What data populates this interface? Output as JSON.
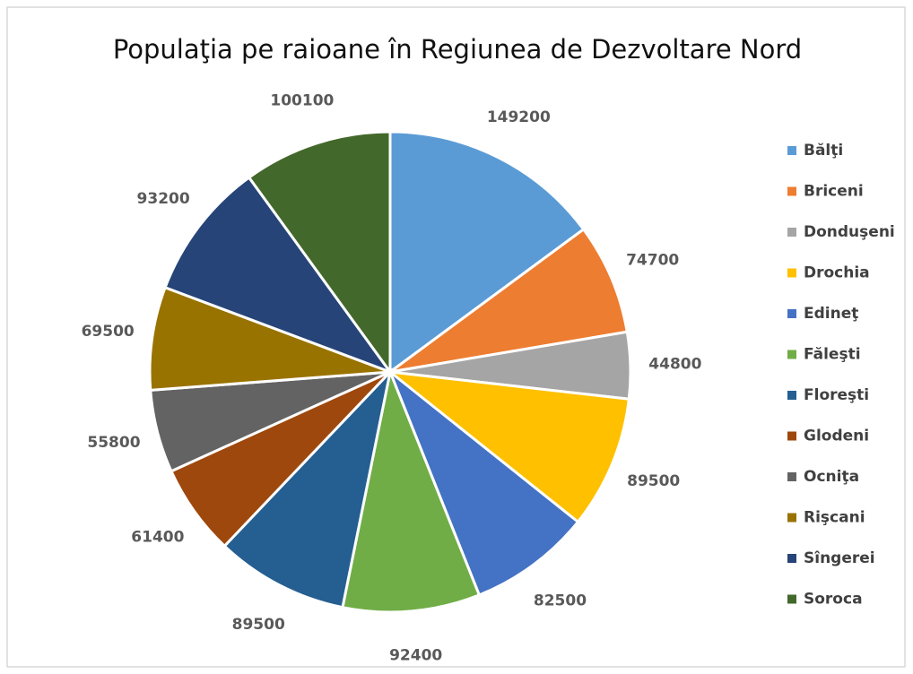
{
  "chart_data": {
    "type": "pie",
    "title": "Populaţia pe raioane în Regiunea de Dezvoltare Nord",
    "categories": [
      "Bălţi",
      "Briceni",
      "Donduşeni",
      "Drochia",
      "Edineţ",
      "Făleşti",
      "Floreşti",
      "Glodeni",
      "Ocniţa",
      "Rişcani",
      "Sîngerei",
      "Soroca"
    ],
    "values": [
      149200,
      74700,
      44800,
      89500,
      82500,
      92400,
      89500,
      61400,
      55800,
      69500,
      93200,
      100100
    ],
    "colors": [
      "#5b9bd5",
      "#ed7d31",
      "#a5a5a5",
      "#ffc000",
      "#4472c4",
      "#70ad47",
      "#255e91",
      "#9e480e",
      "#636363",
      "#997300",
      "#264478",
      "#43682b"
    ],
    "legend": "right"
  }
}
